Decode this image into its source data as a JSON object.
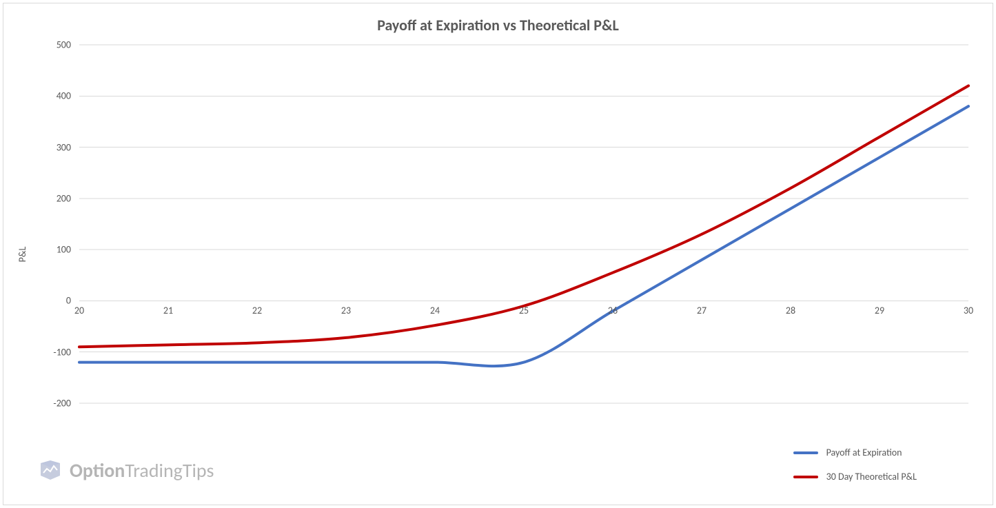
{
  "chart": {
    "type": "line",
    "title": "Payoff at Expiration vs Theoretical P&L",
    "title_fontsize": 22,
    "title_color": "#595959",
    "background_color": "#ffffff",
    "border_color": "#d9d9d9",
    "grid_color": "#d9d9d9",
    "axis_label_color": "#595959",
    "axis_label_fontsize": 14,
    "line_width": 4,
    "y_axis": {
      "title": "P&L",
      "min": -200,
      "max": 500,
      "tick_step": 100,
      "ticks": [
        -200,
        -100,
        0,
        100,
        200,
        300,
        400,
        500
      ]
    },
    "x_axis": {
      "categories": [
        "20",
        "21",
        "22",
        "23",
        "24",
        "25",
        "26",
        "27",
        "28",
        "29",
        "30"
      ],
      "baseline_value": 0
    },
    "series": [
      {
        "name": "Payoff at Expiration",
        "color": "#4472c4",
        "values": [
          -120,
          -120,
          -120,
          -120,
          -120,
          -120,
          -20,
          80,
          180,
          280,
          380
        ]
      },
      {
        "name": "30 Day Theoretical P&L",
        "color": "#c00000",
        "values": [
          -90,
          -86,
          -82,
          -72,
          -48,
          -10,
          55,
          130,
          220,
          320,
          420
        ]
      }
    ],
    "legend": {
      "position": "bottom-right",
      "items": [
        {
          "label": "Payoff at Expiration",
          "color": "#4472c4"
        },
        {
          "label": "30 Day Theoretical P&L",
          "color": "#c00000"
        }
      ]
    }
  },
  "watermark": {
    "text_strong": "Option",
    "text_light": "TradingTips",
    "logo_color": "#6b7ba8",
    "text_color": "#7a7a7a"
  }
}
